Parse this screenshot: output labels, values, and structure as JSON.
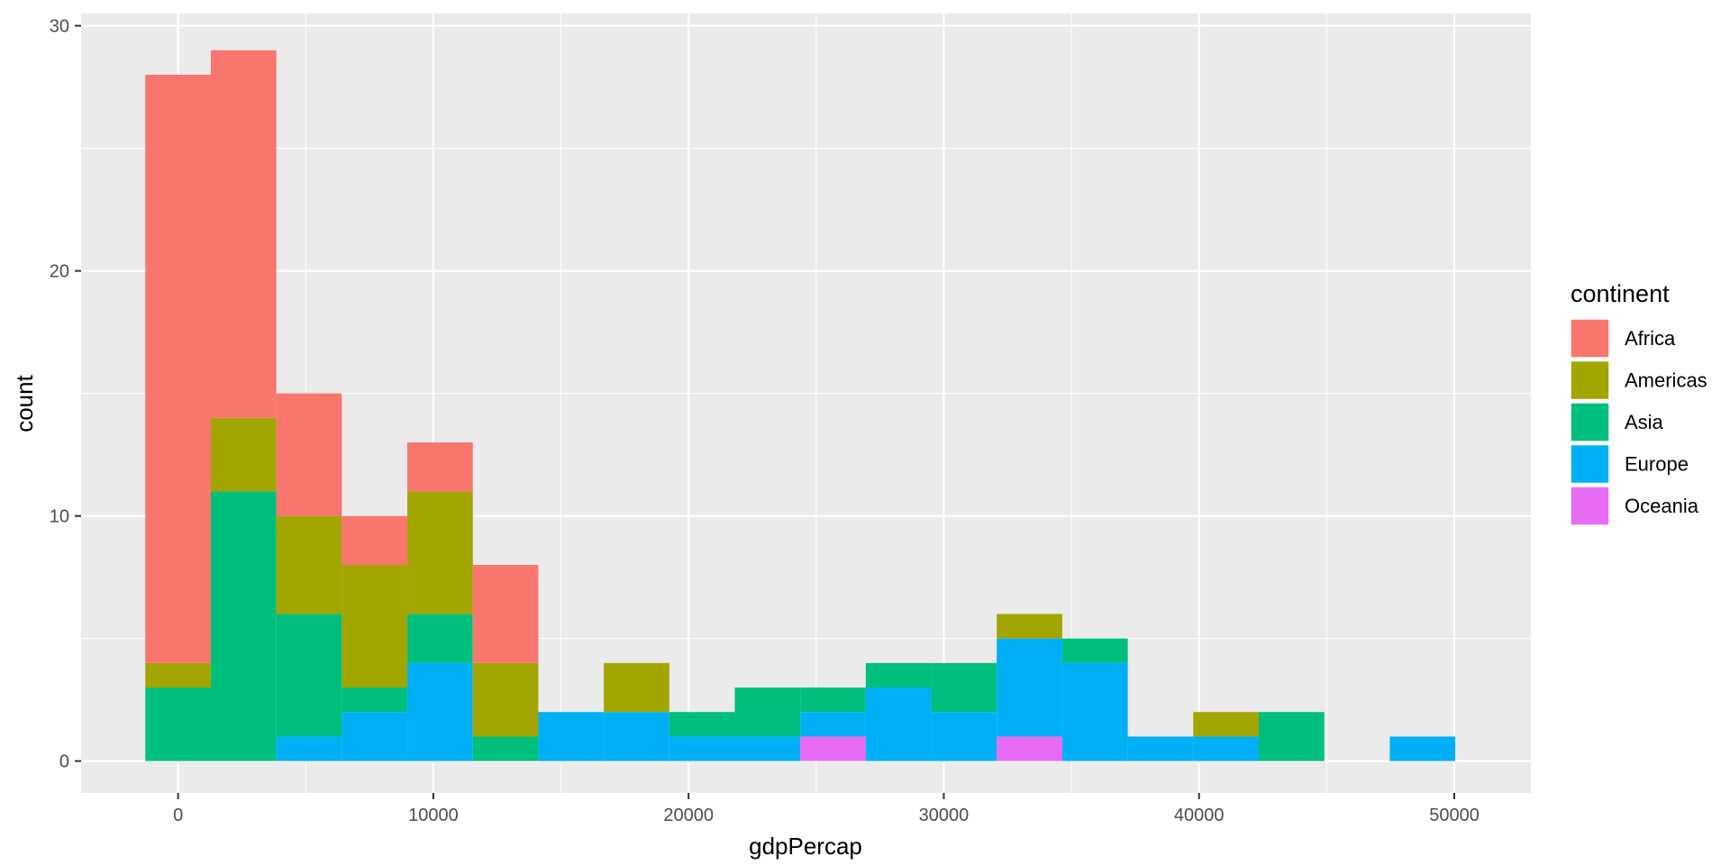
{
  "chart_data": {
    "type": "bar",
    "stacked": true,
    "histogram": true,
    "xlabel": "gdpPercap",
    "ylabel": "count",
    "xlim": [
      -3800,
      53000
    ],
    "ylim": [
      -1.3,
      30.5
    ],
    "x_ticks": [
      0,
      10000,
      20000,
      30000,
      40000,
      50000
    ],
    "y_ticks": [
      0,
      10,
      20,
      30
    ],
    "grid": true,
    "legend": {
      "title": "continent",
      "position": "right"
    },
    "bin_width": 2566,
    "bin_start": -1283,
    "bins": 20,
    "series": [
      {
        "name": "Africa",
        "color": "#F8766D",
        "values": [
          24,
          15,
          5,
          2,
          2,
          4,
          0,
          0,
          0,
          0,
          0,
          0,
          0,
          0,
          0,
          0,
          0,
          0,
          0,
          0
        ]
      },
      {
        "name": "Americas",
        "color": "#A3A500",
        "values": [
          1,
          3,
          4,
          5,
          5,
          3,
          0,
          2,
          0,
          0,
          0,
          0,
          0,
          1,
          0,
          0,
          1,
          0,
          0,
          0
        ]
      },
      {
        "name": "Asia",
        "color": "#00BF7D",
        "values": [
          3,
          11,
          5,
          1,
          2,
          1,
          0,
          0,
          1,
          2,
          1,
          1,
          2,
          0,
          1,
          0,
          0,
          2,
          0,
          0
        ]
      },
      {
        "name": "Europe",
        "color": "#00B0F6",
        "values": [
          0,
          0,
          1,
          2,
          4,
          0,
          2,
          2,
          1,
          1,
          1,
          3,
          2,
          4,
          4,
          1,
          1,
          0,
          0,
          1
        ]
      },
      {
        "name": "Oceania",
        "color": "#E76BF3",
        "values": [
          0,
          0,
          0,
          0,
          0,
          0,
          0,
          0,
          0,
          0,
          1,
          0,
          0,
          1,
          0,
          0,
          0,
          0,
          0,
          0
        ]
      }
    ]
  }
}
